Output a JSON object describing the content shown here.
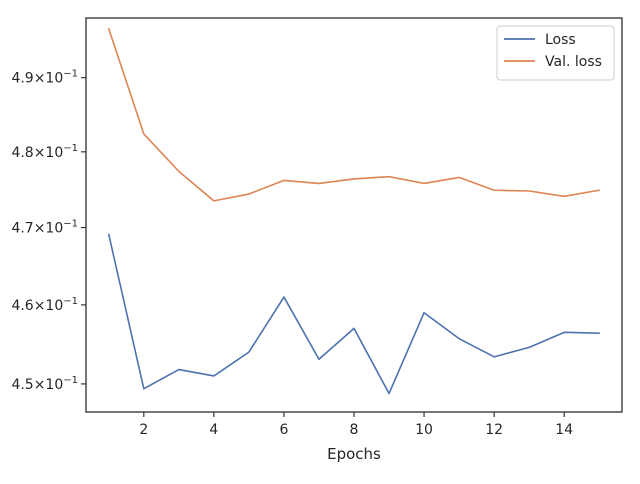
{
  "chart_data": {
    "type": "line",
    "xlabel": "Epochs",
    "ylabel": "",
    "yscale": "log",
    "xlim": [
      0.35,
      15.65
    ],
    "ylim": [
      0.4465,
      0.4982
    ],
    "xticks": [
      2,
      4,
      6,
      8,
      10,
      12,
      14
    ],
    "xtick_labels": [
      "2",
      "4",
      "6",
      "8",
      "10",
      "12",
      "14"
    ],
    "yticks": [
      0.45,
      0.46,
      0.47,
      0.48,
      0.49
    ],
    "ytick_labels": [
      {
        "mantissa": "4.5",
        "base": "10",
        "exp": "−1"
      },
      {
        "mantissa": "4.6",
        "base": "10",
        "exp": "−1"
      },
      {
        "mantissa": "4.7",
        "base": "10",
        "exp": "−1"
      },
      {
        "mantissa": "4.8",
        "base": "10",
        "exp": "−1"
      },
      {
        "mantissa": "4.9",
        "base": "10",
        "exp": "−1"
      }
    ],
    "grid": false,
    "legend_position": "top-right",
    "x": [
      1,
      2,
      3,
      4,
      5,
      6,
      7,
      8,
      9,
      10,
      11,
      12,
      13,
      14,
      15
    ],
    "series": [
      {
        "name": "Loss",
        "color": "#4c72b0",
        "values": [
          0.4691,
          0.4494,
          0.4518,
          0.451,
          0.454,
          0.461,
          0.4531,
          0.457,
          0.4488,
          0.459,
          0.4557,
          0.4534,
          0.4546,
          0.4565,
          0.4564
        ]
      },
      {
        "name": "Val. loss",
        "color": "#dd8452",
        "values": [
          0.4967,
          0.4824,
          0.4774,
          0.4735,
          0.4744,
          0.4762,
          0.4758,
          0.4764,
          0.4767,
          0.4758,
          0.4766,
          0.4749,
          0.4748,
          0.4741,
          0.4749
        ]
      }
    ]
  }
}
